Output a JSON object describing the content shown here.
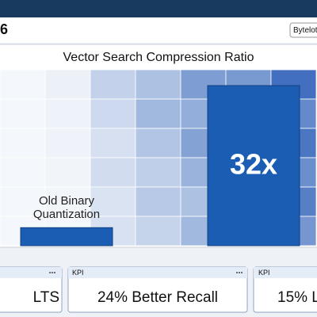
{
  "header": {
    "title": "6",
    "button": "Bytelot"
  },
  "chart_data": {
    "type": "bar",
    "title": "Vector Search Compression Ratio",
    "categories": [
      "Old Binary Quantization",
      null
    ],
    "values": [
      3.6,
      32
    ],
    "value_labels": [
      null,
      "32x"
    ],
    "color": "#1c5db4"
  },
  "kpis": [
    {
      "value": "LTS"
    },
    {
      "label": "KPI",
      "value": "24% Better Recall"
    },
    {
      "label": "KPI",
      "value": "15% L"
    }
  ]
}
